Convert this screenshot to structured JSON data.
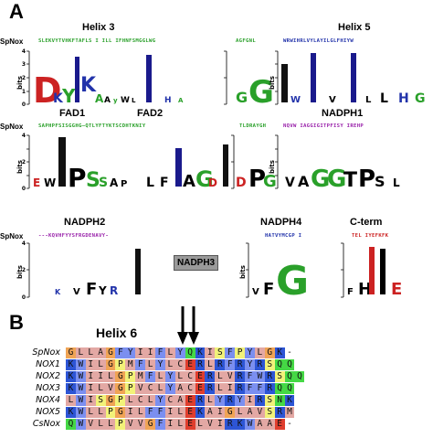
{
  "panel_a": {
    "letter": "A"
  },
  "panel_b": {
    "letter": "B",
    "helix6_title": "Helix 6"
  },
  "spnox_label": "SpNox",
  "regions": {
    "helix3": {
      "title": "Helix 3",
      "seq": "SLEKVYTVHKFTAFLS I ILL IFHNFSMGGLWG"
    },
    "helix5": {
      "title": "Helix 5",
      "seq": "WRWIHRLVYLAYILGLFHIYW",
      "seq2": "AGFGNL"
    },
    "fad": {
      "title1": "FAD1",
      "title2": "FAD2",
      "seq": "SAPHPFSISGGHG—QTLYFTYKTSCDHTKNIY"
    },
    "nadph1": {
      "title": "NADPH1",
      "seq": "NQVW IAGGIGITPFISY IREHP",
      "seq_left": "TLDRAYGH"
    },
    "nadph2": {
      "title": "NADPH2",
      "seq": "---KQVHFYYSFRGDENAVY-"
    },
    "nadph3": {
      "label": "NADPH3"
    },
    "nadph4": {
      "title": "NADPH4",
      "seq": "HATVYMCGP I"
    },
    "cterm": {
      "title": "C-term",
      "seq": "TEL IYEFKFK"
    },
    "axis_label": "bits"
  },
  "alignment": {
    "names": [
      "SpNox",
      "NOX1",
      "NOX2",
      "NOX3",
      "NOX4",
      "NOX5",
      "CsNox"
    ],
    "rows": [
      "GLLAGFYIIFLYQKISFPYLGK-",
      "KWILGPMFLYLCERLRFRYRSQQ",
      "KWIILGPMFLYLCERLVRFWRSQQ",
      "KWILVGPVCLYACERLIRFFRQQ",
      "LWISGPLCLYCAERLYRYIRSNK",
      "KWLLPGILFFILEKAIGLAVSRM",
      "QWVLLPVVGFILELVIRKWAAE-"
    ]
  },
  "colors": {
    "hydrophobic": "#e3a8a4",
    "aromatic": "#7b8ff0",
    "polar": "#f2f279",
    "gly": "#f0a455",
    "charged_neg": "#e03e2e",
    "charged_pos": "#2d55d5",
    "special": "#c45cc0",
    "amide": "#45d845"
  }
}
